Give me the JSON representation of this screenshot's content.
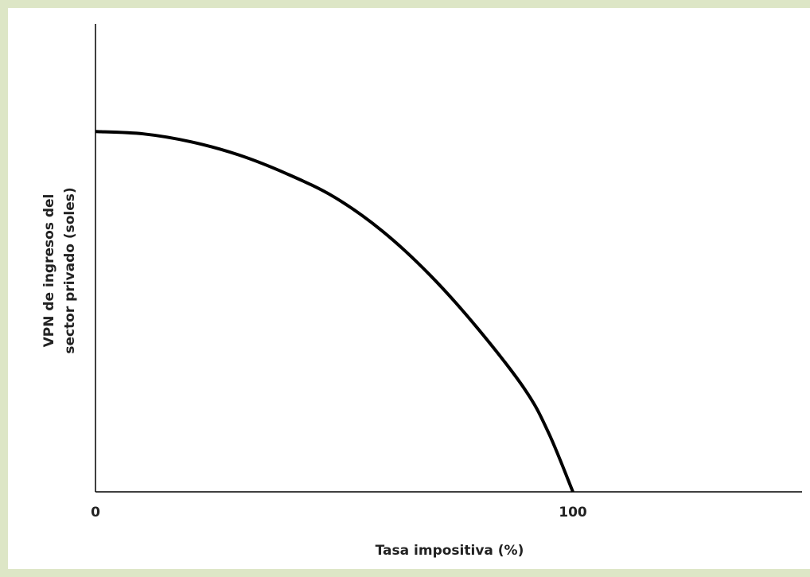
{
  "chart_data": {
    "type": "line",
    "xlabel": "Tasa impositiva (%)",
    "ylabel": [
      "VPN de ingresos del",
      "sector privado (soles)"
    ],
    "x": [
      0,
      10,
      20,
      30,
      40,
      50,
      60,
      70,
      80,
      90,
      95,
      100
    ],
    "series": [
      {
        "color": "#000000",
        "values": [
          77,
          76.5,
          74.8,
          72,
          68,
          63,
          55.8,
          46.4,
          35,
          21.8,
          12.4,
          0
        ]
      }
    ],
    "xlim": [
      0,
      148
    ],
    "xticks": [
      0,
      100
    ],
    "ylim": [
      0,
      100
    ]
  }
}
